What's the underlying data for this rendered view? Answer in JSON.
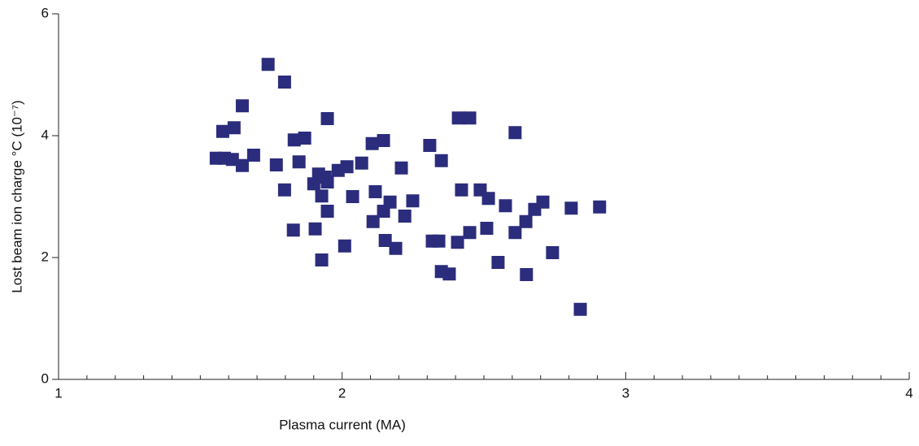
{
  "chart_data": {
    "type": "scatter",
    "xlabel": "Plasma current (MA)",
    "ylabel": "Lost beam ion charge °C (10⁻⁷)",
    "color": "#2b2c7c",
    "xlim": [
      1,
      4
    ],
    "ylim": [
      0,
      6
    ],
    "xticks": [
      1,
      2,
      3,
      4
    ],
    "yticks": [
      0,
      2,
      4,
      6
    ],
    "xminorticks": [
      1.1,
      1.2,
      1.3,
      1.4,
      1.5,
      1.6,
      1.7,
      1.8,
      1.9,
      2.1,
      2.2,
      2.3,
      2.4,
      2.5,
      2.6,
      2.7,
      2.8,
      2.9,
      3.1,
      3.2,
      3.3,
      3.4,
      3.5,
      3.6,
      3.7,
      3.8,
      3.9
    ],
    "x": [
      1.556,
      1.585,
      1.613,
      1.579,
      1.619,
      1.648,
      1.648,
      1.688,
      1.739,
      1.768,
      1.797,
      1.797,
      1.828,
      1.831,
      1.848,
      1.868,
      1.9,
      1.905,
      1.917,
      1.928,
      1.928,
      1.94,
      1.948,
      1.948,
      1.948,
      1.986,
      2.017,
      2.009,
      2.037,
      2.069,
      2.106,
      2.109,
      2.117,
      2.146,
      2.146,
      2.152,
      2.169,
      2.189,
      2.209,
      2.221,
      2.249,
      2.309,
      2.318,
      2.341,
      2.35,
      2.35,
      2.378,
      2.41,
      2.407,
      2.421,
      2.45,
      2.45,
      2.487,
      2.51,
      2.516,
      2.55,
      2.576,
      2.61,
      2.61,
      2.648,
      2.65,
      2.679,
      2.708,
      2.742,
      2.808,
      2.84,
      2.908
    ],
    "values": [
      3.63,
      3.63,
      3.61,
      4.07,
      4.13,
      4.49,
      3.51,
      3.68,
      5.17,
      3.52,
      3.11,
      4.88,
      2.45,
      3.93,
      3.57,
      3.96,
      3.21,
      2.47,
      3.37,
      3.01,
      1.96,
      3.32,
      3.24,
      4.28,
      2.76,
      3.43,
      3.49,
      2.19,
      3.0,
      3.55,
      3.87,
      2.59,
      3.08,
      3.92,
      2.76,
      2.28,
      2.91,
      2.15,
      3.47,
      2.68,
      2.93,
      3.84,
      2.27,
      2.27,
      3.59,
      1.77,
      1.73,
      4.29,
      2.25,
      3.11,
      4.29,
      2.41,
      3.11,
      2.48,
      2.97,
      1.92,
      2.85,
      4.05,
      2.41,
      2.59,
      1.72,
      2.79,
      2.91,
      2.08,
      2.81,
      1.15,
      2.83
    ]
  }
}
